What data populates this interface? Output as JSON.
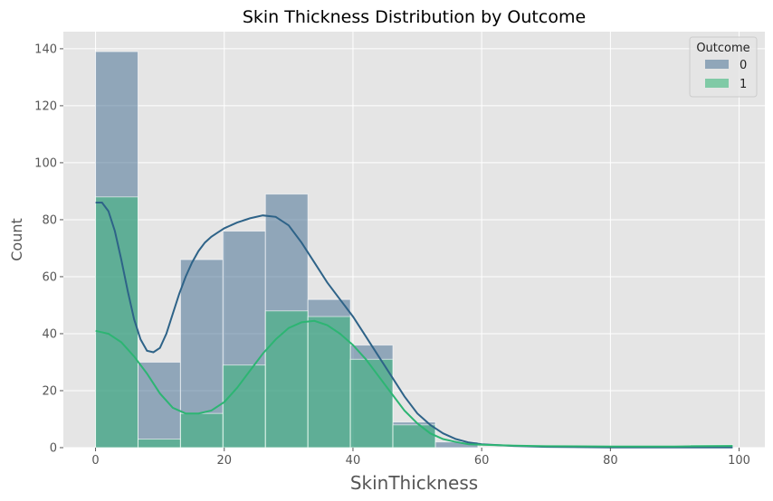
{
  "chart_data": {
    "type": "bar",
    "subtype": "histogram-with-kde",
    "title": "Skin Thickness Distribution by Outcome",
    "xlabel": "SkinThickness",
    "ylabel": "Count",
    "xlim": [
      -5,
      104
    ],
    "ylim": [
      0,
      146
    ],
    "x_ticks": [
      0,
      20,
      40,
      60,
      80,
      100
    ],
    "y_ticks": [
      0,
      20,
      40,
      60,
      80,
      100,
      120,
      140
    ],
    "grid": true,
    "legend": {
      "title": "Outcome",
      "position": "top-right"
    },
    "bin_edges": [
      0,
      6.6,
      13.2,
      19.8,
      26.4,
      33.0,
      39.6,
      46.2,
      52.8,
      59.4,
      66.0,
      72.6,
      79.2,
      85.8,
      92.4,
      99.0
    ],
    "series": [
      {
        "name": "0",
        "color": "#4a7396",
        "counts": [
          139,
          30,
          66,
          76,
          89,
          52,
          36,
          9,
          2,
          0,
          0,
          0,
          0,
          0,
          0
        ],
        "kde": [
          [
            0,
            86
          ],
          [
            1,
            86
          ],
          [
            2,
            83
          ],
          [
            3,
            76
          ],
          [
            4,
            66
          ],
          [
            5,
            55
          ],
          [
            6,
            45
          ],
          [
            7,
            38
          ],
          [
            8,
            34
          ],
          [
            9,
            33.5
          ],
          [
            10,
            35
          ],
          [
            11,
            40
          ],
          [
            12,
            47
          ],
          [
            13,
            54
          ],
          [
            14,
            60
          ],
          [
            15,
            65
          ],
          [
            16,
            69
          ],
          [
            17,
            72
          ],
          [
            18,
            74
          ],
          [
            19,
            75.5
          ],
          [
            20,
            77
          ],
          [
            22,
            79
          ],
          [
            24,
            80.5
          ],
          [
            26,
            81.5
          ],
          [
            28,
            81
          ],
          [
            30,
            78
          ],
          [
            32,
            72
          ],
          [
            34,
            65
          ],
          [
            36,
            58
          ],
          [
            38,
            52
          ],
          [
            40,
            46
          ],
          [
            42,
            39
          ],
          [
            44,
            32
          ],
          [
            46,
            25
          ],
          [
            48,
            18
          ],
          [
            50,
            12
          ],
          [
            52,
            8
          ],
          [
            54,
            5
          ],
          [
            56,
            3
          ],
          [
            58,
            1.8
          ],
          [
            60,
            1.2
          ],
          [
            65,
            0.6
          ],
          [
            70,
            0.3
          ],
          [
            80,
            0.1
          ],
          [
            90,
            0.05
          ],
          [
            99,
            0.05
          ]
        ]
      },
      {
        "name": "1",
        "color": "#2db573",
        "counts": [
          88,
          3,
          12,
          29,
          48,
          46,
          31,
          8,
          0,
          0,
          0,
          0,
          0,
          0,
          1
        ],
        "kde": [
          [
            0,
            41
          ],
          [
            2,
            40
          ],
          [
            4,
            37
          ],
          [
            6,
            32
          ],
          [
            8,
            26
          ],
          [
            10,
            19
          ],
          [
            12,
            14
          ],
          [
            14,
            12
          ],
          [
            16,
            12
          ],
          [
            18,
            13
          ],
          [
            20,
            16
          ],
          [
            22,
            21
          ],
          [
            24,
            27
          ],
          [
            26,
            33
          ],
          [
            28,
            38
          ],
          [
            30,
            42
          ],
          [
            32,
            44
          ],
          [
            34,
            44.5
          ],
          [
            36,
            43
          ],
          [
            38,
            40
          ],
          [
            40,
            36
          ],
          [
            42,
            31
          ],
          [
            44,
            25
          ],
          [
            46,
            19
          ],
          [
            48,
            13
          ],
          [
            50,
            8.5
          ],
          [
            52,
            5
          ],
          [
            54,
            3
          ],
          [
            56,
            2
          ],
          [
            58,
            1.2
          ],
          [
            60,
            1
          ],
          [
            65,
            0.7
          ],
          [
            70,
            0.5
          ],
          [
            80,
            0.4
          ],
          [
            90,
            0.4
          ],
          [
            99,
            0.6
          ]
        ]
      }
    ]
  }
}
